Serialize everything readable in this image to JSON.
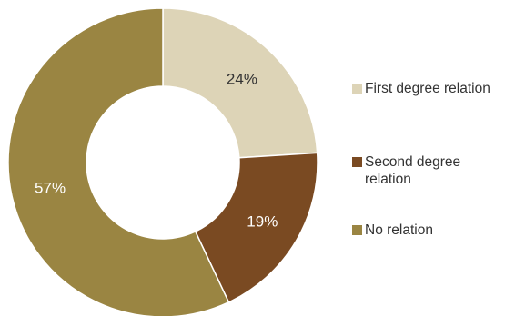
{
  "chart_data": {
    "type": "pie",
    "donut": true,
    "categories": [
      "First degree relation",
      "Second degree relation",
      "No relation"
    ],
    "values": [
      24,
      19,
      57
    ],
    "labels": [
      "24%",
      "19%",
      "57%"
    ],
    "colors": [
      "#ddd4b7",
      "#7a4a22",
      "#9a8542"
    ],
    "legend_position": "right"
  }
}
